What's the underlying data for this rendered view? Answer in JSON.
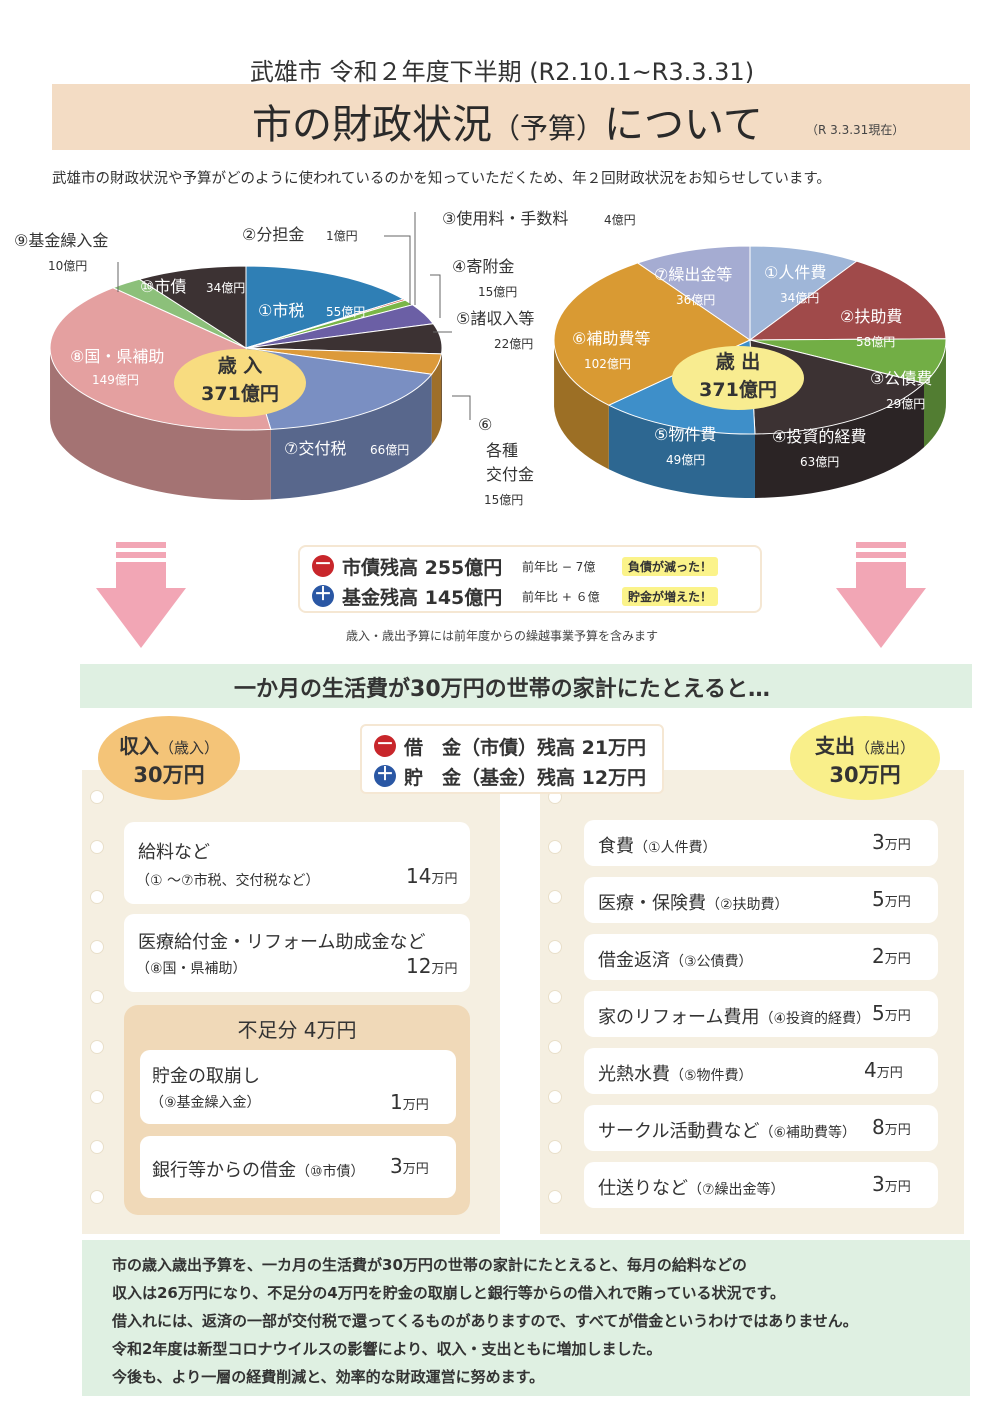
{
  "header": {
    "subtitle": "武雄市 令和２年度下半期 (R2.10.1~R3.3.31)",
    "title_main": "市の財政状況",
    "title_paren": "（予算）",
    "title_tail": "について",
    "title_date": "（R 3.3.31現在）",
    "intro": "武雄市の財政状況や予算がどのように使われているのかを知っていただくため、年２回財政状況をお知らせしています。"
  },
  "chart_data": [
    {
      "type": "pie",
      "title": "歳 入",
      "total_label": "371億円",
      "unit": "億円",
      "slices": [
        {
          "label": "①市税",
          "value": 55,
          "color": "#2f7fb5"
        },
        {
          "label": "②分担金",
          "value": 1,
          "color": "#d2462e"
        },
        {
          "label": "③使用料・手数料",
          "value": 4,
          "color": "#7ab648"
        },
        {
          "label": "④寄附金",
          "value": 15,
          "color": "#6b5fa5"
        },
        {
          "label": "⑤諸収入等",
          "value": 22,
          "color": "#3c3233"
        },
        {
          "label": "⑥各種交付金",
          "value": 15,
          "color": "#dc9a3a"
        },
        {
          "label": "⑦交付税",
          "value": 66,
          "color": "#7a8fc2"
        },
        {
          "label": "⑧国・県補助",
          "value": 149,
          "color": "#e4a0a0"
        },
        {
          "label": "⑨基金繰入金",
          "value": 10,
          "color": "#8cc07a"
        },
        {
          "label": "⑩市債",
          "value": 34,
          "color": "#3c3233"
        }
      ]
    },
    {
      "type": "pie",
      "title": "歳 出",
      "total_label": "371億円",
      "unit": "億円",
      "slices": [
        {
          "label": "①人件費",
          "value": 34,
          "color": "#9fb6d8"
        },
        {
          "label": "②扶助費",
          "value": 58,
          "color": "#a04a4a"
        },
        {
          "label": "③公債費",
          "value": 29,
          "color": "#72ae45"
        },
        {
          "label": "④投資的経費",
          "value": 63,
          "color": "#3c3233"
        },
        {
          "label": "⑤物件費",
          "value": 49,
          "color": "#3e8fc9"
        },
        {
          "label": "⑥補助費等",
          "value": 102,
          "color": "#d99a33"
        },
        {
          "label": "⑦繰出金等",
          "value": 36,
          "color": "#a5acd2"
        }
      ]
    }
  ],
  "revenue_labels": {
    "s1": "①市税",
    "s1v": "55億円",
    "s2": "②分担金",
    "s2v": "1億円",
    "s3": "③使用料・手数料",
    "s3v": "4億円",
    "s4": "④寄附金",
    "s4v": "15億円",
    "s5": "⑤諸収入等",
    "s5v": "22億円",
    "s6a": "⑥",
    "s6b": "各種",
    "s6c": "交付金",
    "s6v": "15億円",
    "s7": "⑦交付税",
    "s7v": "66億円",
    "s8": "⑧国・県補助",
    "s8v": "149億円",
    "s9": "⑨基金繰入金",
    "s9v": "10億円",
    "s10": "⑩市債",
    "s10v": "34億円",
    "center1": "歳 入",
    "center2": "371億円"
  },
  "expense_labels": {
    "s1": "①人件費",
    "s1v": "34億円",
    "s2": "②扶助費",
    "s2v": "58億円",
    "s3": "③公債費",
    "s3v": "29億円",
    "s4": "④投資的経費",
    "s4v": "63億円",
    "s5": "⑤物件費",
    "s5v": "49億円",
    "s6": "⑥補助費等",
    "s6v": "102億円",
    "s7": "⑦繰出金等",
    "s7v": "36億円",
    "center1": "歳 出",
    "center2": "371億円"
  },
  "summary": {
    "minus_sign": "－",
    "plus_sign": "＋",
    "debt": "市債残高 255億円",
    "debt_diff": "前年比 − 7億",
    "debt_note": "負債が減った！",
    "fund": "基金残高 145億円",
    "fund_diff": "前年比 + ６億",
    "fund_note": "貯金が増えた！",
    "carryover": "歳入・歳出予算には前年度からの繰越事業予算を含みます"
  },
  "household": {
    "title": "一か月の生活費が30万円の世帯の家計にたとえると…",
    "income_badge_1": "収入",
    "income_badge_1b": "（歳入）",
    "income_badge_2": "30万円",
    "expense_badge_1": "支出",
    "expense_badge_1b": "（歳出）",
    "expense_badge_2": "30万円",
    "loan": "借　金（市債）残高 21万円",
    "savings": "貯　金（基金）残高 12万円"
  },
  "income_items": [
    {
      "line1": "給料など",
      "line2": "（① 〜⑦市税、交付税など）",
      "amount": "14",
      "unit": "万円"
    },
    {
      "line1": "医療給付金・リフォーム助成金など",
      "line2": "（⑧国・県補助）",
      "amount": "12",
      "unit": "万円"
    }
  ],
  "shortage": {
    "title": "不足分 4万円",
    "items": [
      {
        "line1": "貯金の取崩し",
        "line2": "（⑨基金繰入金）",
        "amount": "1",
        "unit": "万円"
      },
      {
        "line1": "銀行等からの借金",
        "line1b": "（⑩市債）",
        "amount": "3",
        "unit": "万円"
      }
    ]
  },
  "expense_items": [
    {
      "label": "食費",
      "sub": "（①人件費）",
      "amount": "3",
      "unit": "万円"
    },
    {
      "label": "医療・保険費",
      "sub": "（②扶助費）",
      "amount": "5",
      "unit": "万円"
    },
    {
      "label": "借金返済",
      "sub": "（③公債費）",
      "amount": "2",
      "unit": "万円"
    },
    {
      "label": "家のリフォーム費用",
      "sub": "（④投資的経費）",
      "amount": "5",
      "unit": "万円"
    },
    {
      "label": "光熱水費",
      "sub": "（⑤物件費）",
      "amount": "4",
      "unit": "万円"
    },
    {
      "label": "サークル活動費など",
      "sub": "（⑥補助費等）",
      "amount": "8",
      "unit": "万円"
    },
    {
      "label": "仕送りなど",
      "sub": "（⑦繰出金等）",
      "amount": "3",
      "unit": "万円"
    }
  ],
  "conclusion": [
    "市の歳入歳出予算を、一カ月の生活費が30万円の世帯の家計にたとえると、毎月の給料などの",
    "収入は26万円になり、不足分の4万円を貯金の取崩しと銀行等からの借入れで賄っている状況です。",
    "借入れには、返済の一部が交付税で還ってくるものがありますので、すべてが借金というわけではありません。",
    "令和2年度は新型コロナウイルスの影響により、収入・支出ともに増加しました。",
    "今後も、より一層の経費削減と、効率的な財政運営に努めます。"
  ]
}
